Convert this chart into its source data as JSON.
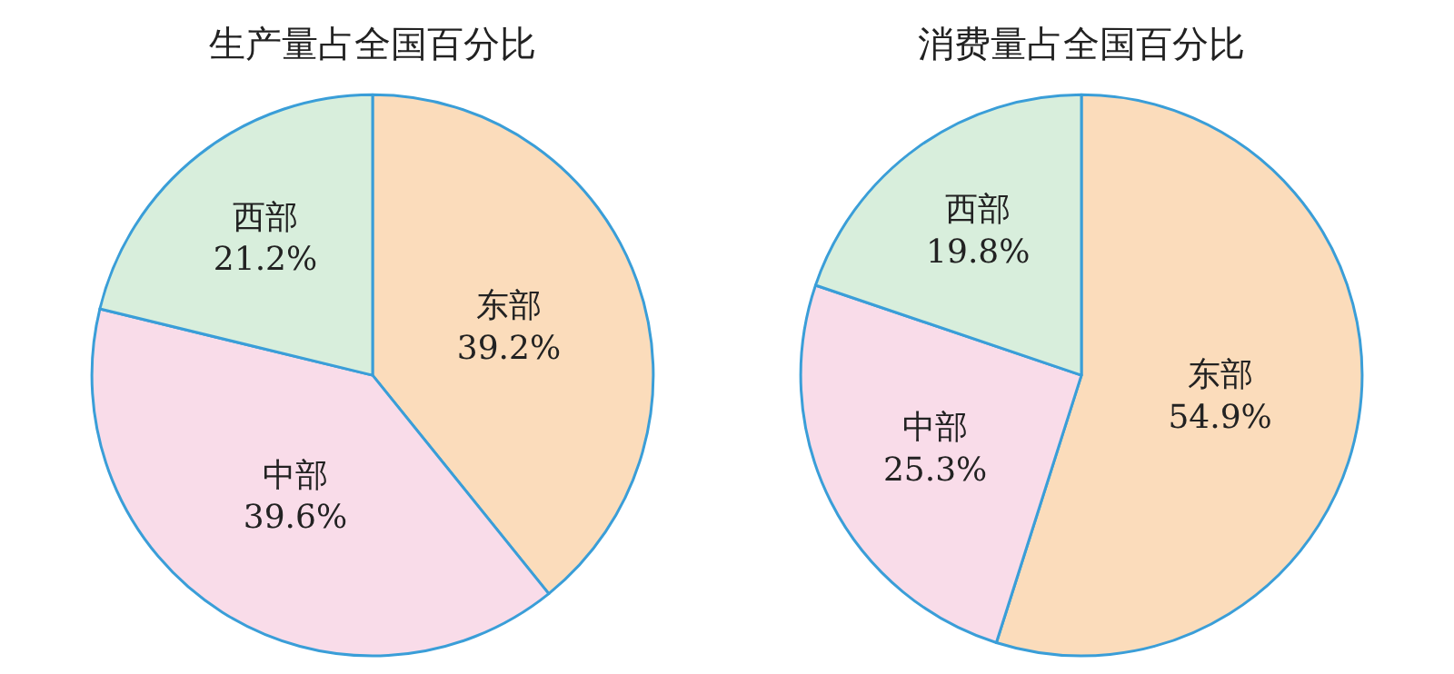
{
  "chart_data": [
    {
      "type": "pie",
      "title": "生产量占全国百分比",
      "categories": [
        "东部",
        "中部",
        "西部"
      ],
      "values": [
        39.2,
        39.6,
        21.2
      ],
      "value_labels": [
        "39.2%",
        "39.6%",
        "21.2%"
      ],
      "colors": [
        "#fbdcbb",
        "#f9dce9",
        "#d8eedc"
      ],
      "legend": false
    },
    {
      "type": "pie",
      "title": "消费量占全国百分比",
      "categories": [
        "东部",
        "中部",
        "西部"
      ],
      "values": [
        54.9,
        25.3,
        19.8
      ],
      "value_labels": [
        "54.9%",
        "25.3%",
        "19.8%"
      ],
      "colors": [
        "#fbdcbb",
        "#f9dce9",
        "#d8eedc"
      ],
      "legend": false
    }
  ]
}
